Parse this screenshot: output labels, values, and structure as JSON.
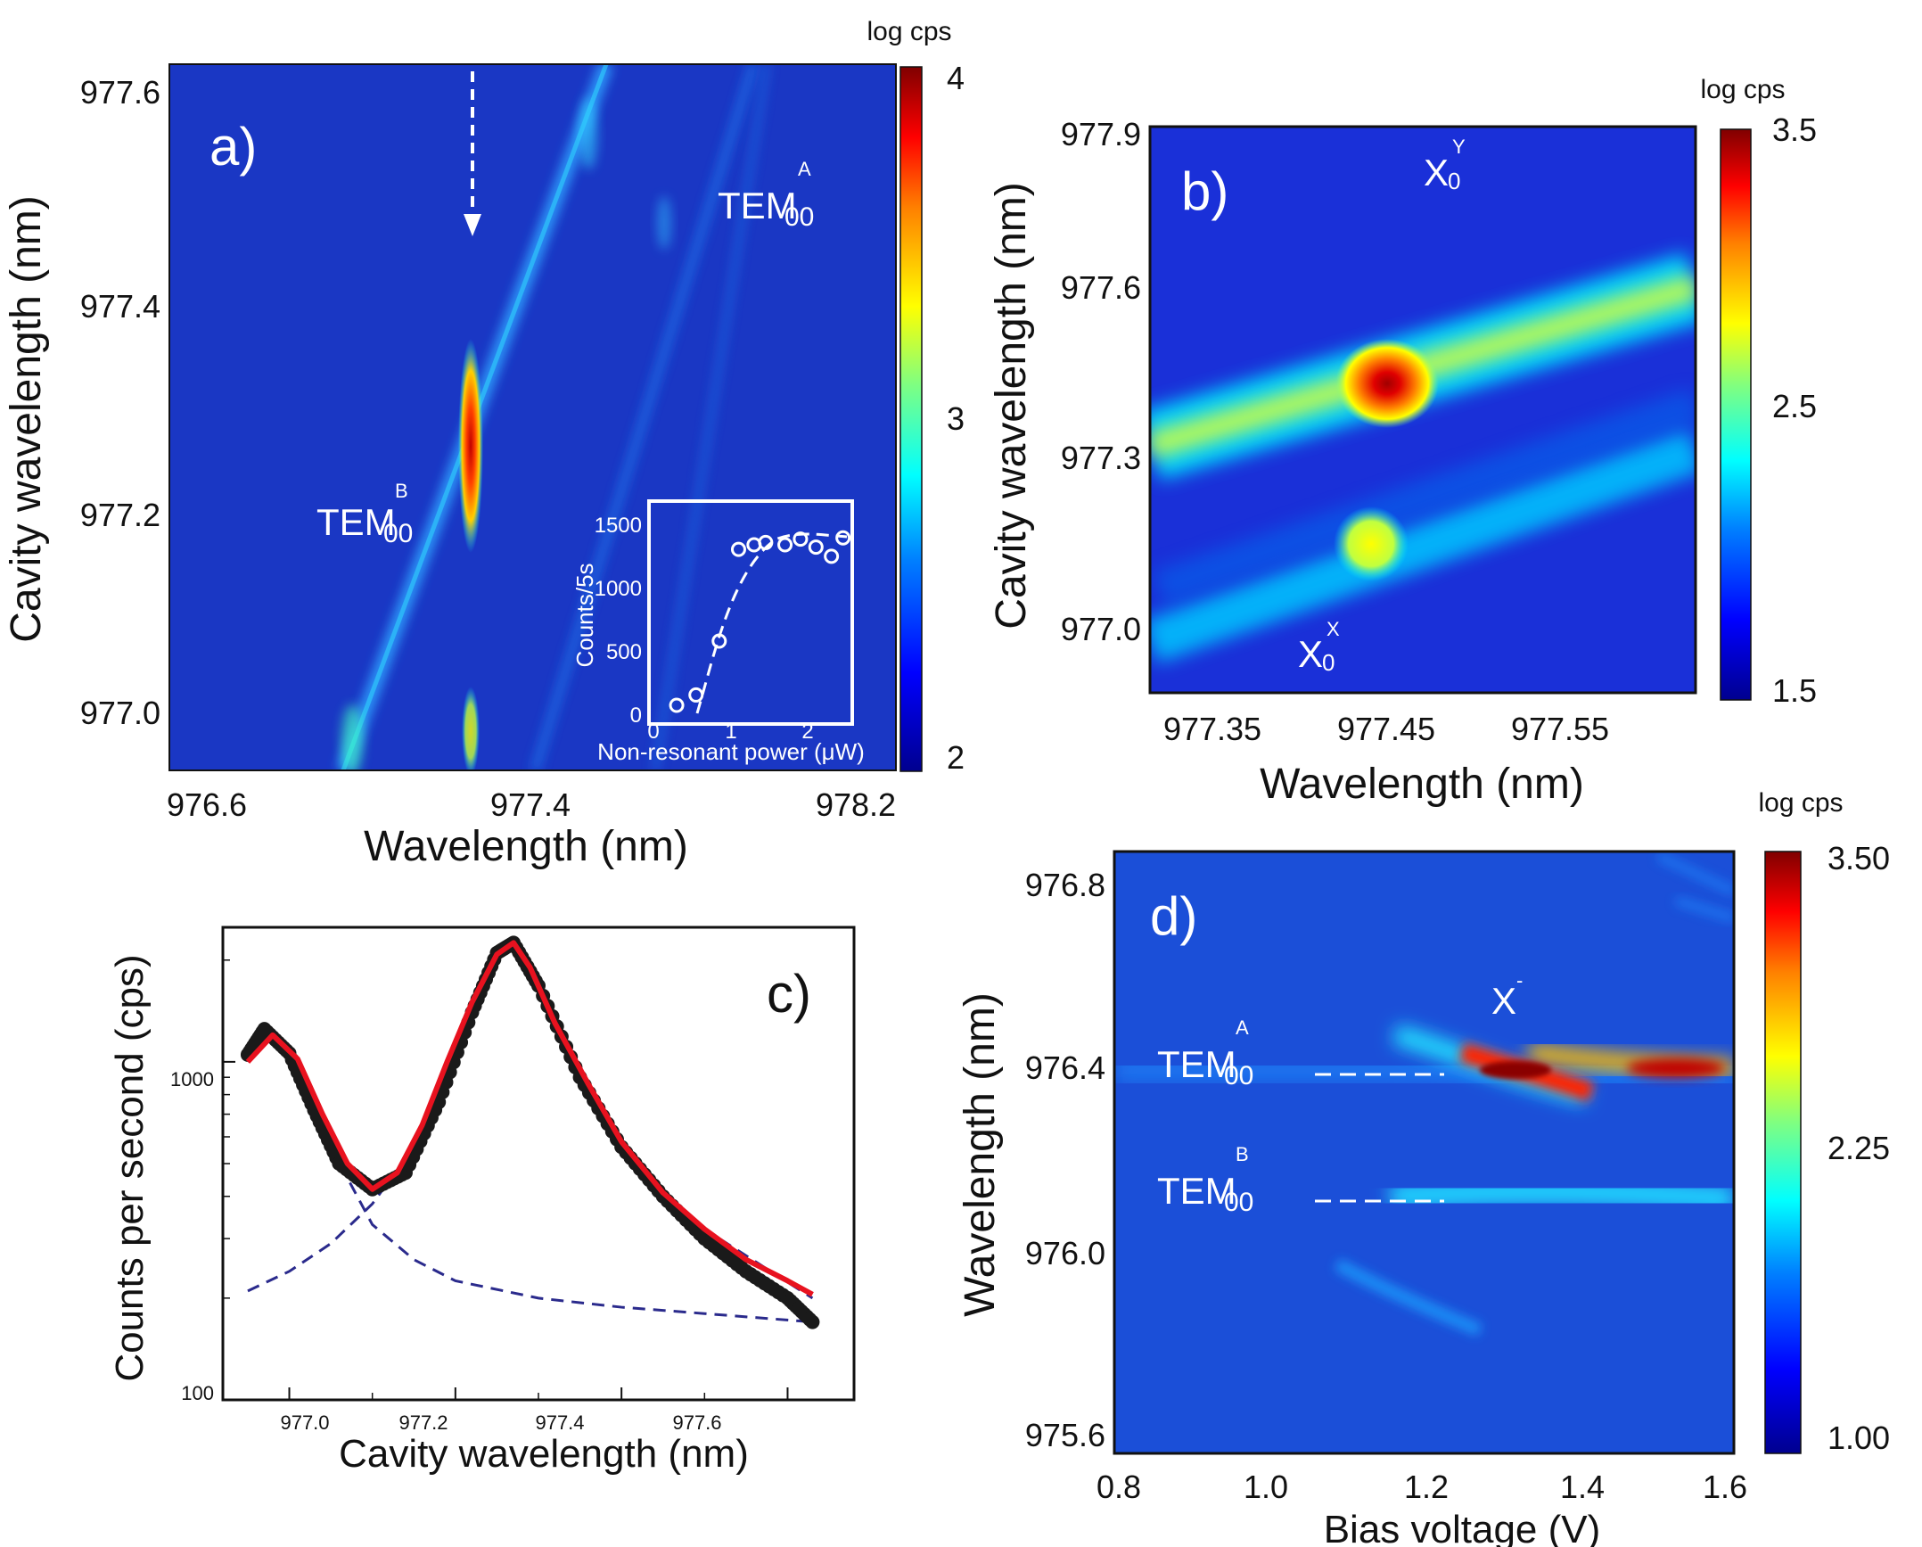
{
  "colors": {
    "map_bg": "#1a37c4",
    "cmap": [
      "#00008f",
      "#0000ff",
      "#0080ff",
      "#00ffff",
      "#80ff80",
      "#ffff00",
      "#ff8000",
      "#ff0000",
      "#800000"
    ],
    "fit": "#e8121f",
    "dash": "#2a2a8c",
    "marker": "#1a1a1a"
  },
  "chart_data": [
    {
      "id": "a",
      "type": "heatmap",
      "panel_label": "a)",
      "xlabel": "Wavelength (nm)",
      "ylabel": "Cavity wavelength (nm)",
      "xlim": [
        976.5,
        978.3
      ],
      "ylim": [
        976.95,
        977.63
      ],
      "xticks": [
        "976.6",
        "977.4",
        "978.2"
      ],
      "yticks": [
        "977.0",
        "977.2",
        "977.4",
        "977.6"
      ],
      "colorbar": {
        "title": "log cps",
        "range": [
          2,
          4
        ],
        "ticks": [
          "2",
          "3",
          "4"
        ]
      },
      "annotations": [
        {
          "main": "TEM",
          "sub": "00",
          "sup": "A"
        },
        {
          "main": "TEM",
          "sub": "00",
          "sup": "B"
        }
      ],
      "inset": {
        "type": "scatter",
        "xlabel": "Non-resonant power (μW)",
        "ylabel": "Counts/5s",
        "xlim": [
          0,
          2.5
        ],
        "ylim": [
          -50,
          1700
        ],
        "xticks": [
          "0",
          "1",
          "2"
        ],
        "yticks": [
          "0",
          "500",
          "1000",
          "1500"
        ],
        "x": [
          0.3,
          0.55,
          0.85,
          1.1,
          1.3,
          1.45,
          1.7,
          1.9,
          2.1,
          2.3,
          2.45
        ],
        "y": [
          20,
          110,
          580,
          1380,
          1420,
          1440,
          1420,
          1470,
          1400,
          1320,
          1480
        ]
      }
    },
    {
      "id": "b",
      "type": "heatmap",
      "panel_label": "b)",
      "xlabel": "Wavelength (nm)",
      "ylabel": "Cavity wavelength (nm)",
      "xlim": [
        977.31,
        977.63
      ],
      "ylim": [
        976.94,
        977.92
      ],
      "xticks": [
        "977.35",
        "977.45",
        "977.55"
      ],
      "yticks": [
        "977.0",
        "977.3",
        "977.6",
        "977.9"
      ],
      "colorbar": {
        "title": "log cps",
        "range": [
          1.5,
          3.5
        ],
        "ticks": [
          "1.5",
          "2.5",
          "3.5"
        ]
      },
      "annotations": [
        {
          "main": "X",
          "sub": "0",
          "sup": "Y"
        },
        {
          "main": "X",
          "sub": "0",
          "sup": "X"
        }
      ]
    },
    {
      "id": "c",
      "type": "scatter",
      "panel_label": "c)",
      "xlabel": "Cavity wavelength (nm)",
      "ylabel": "Counts per second (cps)",
      "xlim": [
        976.92,
        977.68
      ],
      "ylim": [
        100,
        2500
      ],
      "yscale": "log",
      "xticks": [
        "977.0",
        "977.2",
        "977.4",
        "977.6"
      ],
      "yticks": [
        "100",
        "1000"
      ],
      "series": [
        {
          "name": "data",
          "x": [
            976.95,
            976.97,
            977.0,
            977.03,
            977.06,
            977.1,
            977.14,
            977.18,
            977.22,
            977.25,
            977.27,
            977.3,
            977.35,
            977.4,
            977.45,
            977.5,
            977.55,
            977.6,
            977.63
          ],
          "y": [
            1050,
            1250,
            1060,
            720,
            500,
            420,
            470,
            760,
            1400,
            2100,
            2250,
            1680,
            900,
            560,
            400,
            300,
            240,
            200,
            170
          ]
        },
        {
          "name": "fit",
          "x": [
            976.95,
            976.98,
            977.01,
            977.04,
            977.07,
            977.1,
            977.13,
            977.16,
            977.19,
            977.22,
            977.25,
            977.27,
            977.29,
            977.32,
            977.36,
            977.4,
            977.45,
            977.5,
            977.55,
            977.6,
            977.63
          ],
          "y": [
            1000,
            1200,
            1020,
            700,
            500,
            420,
            470,
            650,
            1000,
            1500,
            2080,
            2250,
            1900,
            1300,
            860,
            580,
            410,
            320,
            260,
            225,
            205
          ]
        },
        {
          "name": "peak 1 component",
          "x": [
            976.95,
            976.98,
            977.01,
            977.05,
            977.1,
            977.15,
            977.2,
            977.3,
            977.4,
            977.5,
            977.63
          ],
          "y": [
            1000,
            1200,
            1000,
            560,
            330,
            260,
            225,
            200,
            188,
            180,
            170
          ]
        },
        {
          "name": "peak 2 component",
          "x": [
            976.95,
            977.0,
            977.05,
            977.1,
            977.15,
            977.2,
            977.25,
            977.27,
            977.3,
            977.35,
            977.4,
            977.5,
            977.63
          ],
          "y": [
            210,
            240,
            290,
            380,
            560,
            1050,
            2000,
            2250,
            1600,
            850,
            540,
            320,
            200
          ]
        }
      ]
    },
    {
      "id": "d",
      "type": "heatmap",
      "panel_label": "d)",
      "xlabel": "Bias voltage (V)",
      "ylabel": "Wavelength (nm)",
      "xlim": [
        0.8,
        1.6
      ],
      "ylim": [
        975.53,
        976.87
      ],
      "xticks": [
        "0.8",
        "1.0",
        "1.2",
        "1.4",
        "1.6"
      ],
      "yticks": [
        "975.6",
        "976.0",
        "976.4",
        "976.8"
      ],
      "colorbar": {
        "title": "log cps",
        "range": [
          1.0,
          3.5
        ],
        "ticks": [
          "1.00",
          "2.25",
          "3.50"
        ]
      },
      "annotations": [
        {
          "main": "TEM",
          "sub": "00",
          "sup": "A"
        },
        {
          "main": "TEM",
          "sub": "00",
          "sup": "B"
        },
        {
          "main": "X",
          "sub": "",
          "sup": "-"
        }
      ]
    }
  ]
}
